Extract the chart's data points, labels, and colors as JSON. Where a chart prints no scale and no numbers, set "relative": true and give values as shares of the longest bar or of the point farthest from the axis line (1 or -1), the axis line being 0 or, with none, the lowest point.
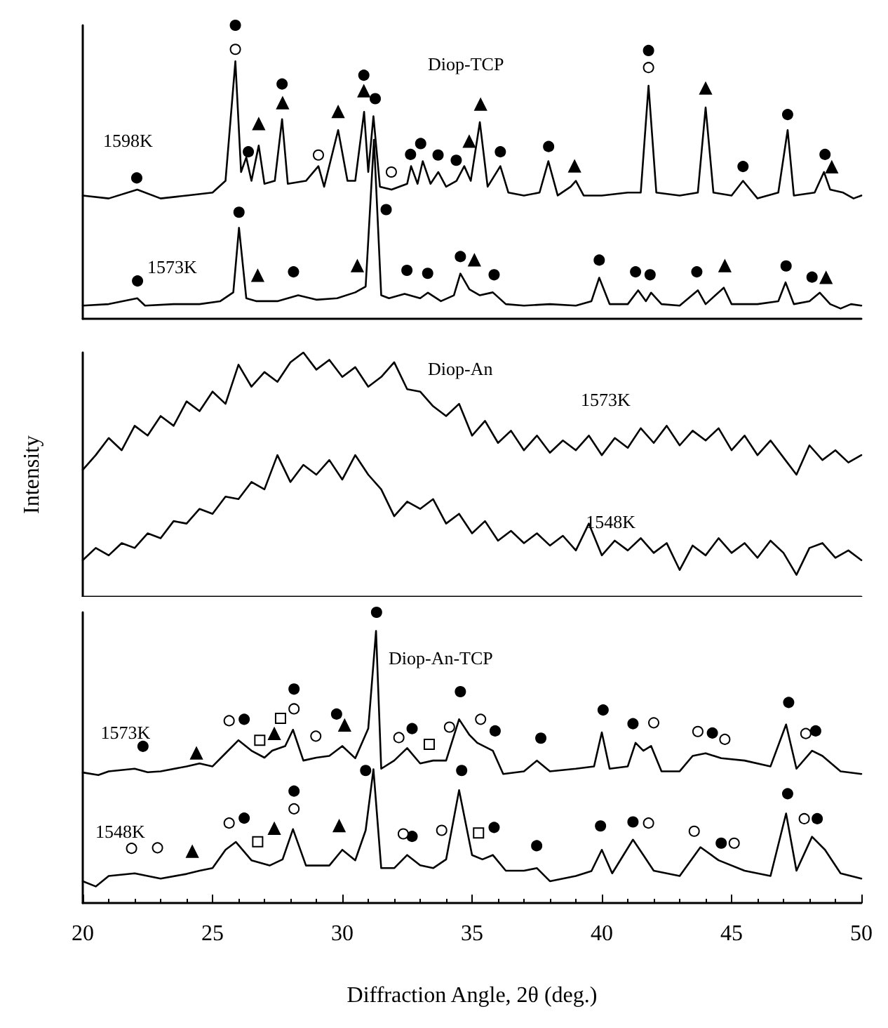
{
  "chart_data": [
    {
      "type": "line",
      "title": "Diop-TCP",
      "relative": true,
      "legend": false,
      "grid": false,
      "tick_labels": false,
      "marker": "none",
      "xlim": [
        20,
        50
      ],
      "xticks": [
        20,
        25,
        30,
        35,
        40,
        45,
        50
      ],
      "series": [
        {
          "name": "1598K",
          "color": "#000000",
          "x": [
            20,
            21,
            22.1,
            23,
            24,
            25,
            25.5,
            25.88,
            26.1,
            26.3,
            26.5,
            26.78,
            27.0,
            27.4,
            27.68,
            27.9,
            28.6,
            29.08,
            29.3,
            29.84,
            30.2,
            30.5,
            30.84,
            31.0,
            31.2,
            31.45,
            31.9,
            32.5,
            32.65,
            32.9,
            33.1,
            33.4,
            33.7,
            34.0,
            34.4,
            34.7,
            34.95,
            35.3,
            35.6,
            36.09,
            36.4,
            37.0,
            37.6,
            37.94,
            38.3,
            38.8,
            39.0,
            39.3,
            40,
            41,
            41.5,
            41.8,
            42.1,
            43,
            43.7,
            44.0,
            44.3,
            45.0,
            45.44,
            46.0,
            46.8,
            47.16,
            47.4,
            48.2,
            48.56,
            48.8,
            49.3,
            49.7,
            50
          ],
          "values": [
            0.42,
            0.41,
            0.44,
            0.41,
            0.42,
            0.43,
            0.47,
            0.877,
            0.5,
            0.55,
            0.47,
            0.59,
            0.46,
            0.47,
            0.68,
            0.46,
            0.47,
            0.52,
            0.45,
            0.643,
            0.47,
            0.47,
            0.705,
            0.5,
            0.69,
            0.45,
            0.44,
            0.46,
            0.52,
            0.46,
            0.537,
            0.46,
            0.5,
            0.45,
            0.47,
            0.52,
            0.47,
            0.67,
            0.45,
            0.52,
            0.43,
            0.42,
            0.43,
            0.537,
            0.42,
            0.45,
            0.47,
            0.42,
            0.42,
            0.43,
            0.43,
            0.794,
            0.43,
            0.42,
            0.43,
            0.72,
            0.43,
            0.42,
            0.47,
            0.41,
            0.43,
            0.643,
            0.42,
            0.43,
            0.5,
            0.44,
            0.43,
            0.41,
            0.42
          ]
        },
        {
          "name": "1573K",
          "color": "#000000",
          "x": [
            20,
            21,
            22.1,
            22.4,
            23.5,
            24.5,
            25.3,
            25.8,
            26.02,
            26.3,
            26.7,
            27.5,
            28.3,
            29,
            29.8,
            30.5,
            30.9,
            31.22,
            31.5,
            31.8,
            32.4,
            33.0,
            33.3,
            33.8,
            34.3,
            34.55,
            34.9,
            35.3,
            35.8,
            36.3,
            37,
            38,
            39,
            39.6,
            39.9,
            40.3,
            41,
            41.4,
            41.7,
            41.9,
            42.3,
            43,
            43.7,
            44,
            44.7,
            45,
            46,
            46.8,
            47.08,
            47.4,
            48,
            48.4,
            48.8,
            49.2,
            49.6,
            50
          ],
          "values": [
            0.045,
            0.05,
            0.07,
            0.045,
            0.05,
            0.05,
            0.06,
            0.09,
            0.31,
            0.07,
            0.06,
            0.06,
            0.08,
            0.065,
            0.07,
            0.09,
            0.11,
            0.61,
            0.08,
            0.07,
            0.085,
            0.07,
            0.089,
            0.06,
            0.08,
            0.154,
            0.1,
            0.08,
            0.09,
            0.05,
            0.045,
            0.05,
            0.045,
            0.06,
            0.14,
            0.05,
            0.05,
            0.097,
            0.06,
            0.089,
            0.05,
            0.045,
            0.097,
            0.05,
            0.106,
            0.05,
            0.05,
            0.06,
            0.124,
            0.05,
            0.06,
            0.089,
            0.05,
            0.035,
            0.05,
            0.045
          ]
        },
        {
          "type": "scatter",
          "marker": "circle",
          "color": "#000000",
          "x": [
            22.08,
            25.88,
            26.38,
            27.68,
            30.83,
            31.27,
            32.63,
            33.02,
            33.69,
            34.39,
            36.09,
            37.95,
            41.8,
            45.44,
            47.16,
            48.6,
            22.11,
            26.02,
            28.12,
            31.69,
            32.49,
            33.29,
            34.55,
            35.85,
            39.9,
            41.3,
            41.86,
            43.66,
            47.1,
            48.1
          ],
          "values": [
            0.48,
            1,
            0.569,
            0.8,
            0.83,
            0.75,
            0.56,
            0.597,
            0.558,
            0.54,
            0.569,
            0.587,
            0.914,
            0.519,
            0.696,
            0.56,
            0.129,
            0.363,
            0.16,
            0.372,
            0.165,
            0.155,
            0.212,
            0.15,
            0.2,
            0.16,
            0.15,
            0.16,
            0.18,
            0.142
          ]
        },
        {
          "type": "scatter",
          "marker": "circle",
          "color": "#ffffff",
          "x": [
            25.88,
            29.08,
            31.89,
            41.8
          ],
          "values": [
            0.918,
            0.558,
            0.5,
            0.856
          ]
        },
        {
          "type": "scatter",
          "marker": "triangle",
          "color": "#000000",
          "x": [
            26.78,
            27.7,
            29.84,
            30.83,
            34.89,
            35.33,
            38.95,
            44.0,
            48.86,
            26.74,
            30.58,
            35.09,
            44.74,
            48.64
          ],
          "values": [
            0.664,
            0.735,
            0.705,
            0.776,
            0.604,
            0.73,
            0.52,
            0.785,
            0.517,
            0.147,
            0.18,
            0.2,
            0.18,
            0.14
          ]
        }
      ]
    },
    {
      "type": "line",
      "title": "Diop-An",
      "ylabel": "Intensity",
      "relative": true,
      "legend": false,
      "grid": false,
      "tick_labels": false,
      "marker": "none",
      "xlim": [
        20,
        50
      ],
      "xticks": [
        20,
        25,
        30,
        35,
        40,
        45,
        50
      ],
      "x": [
        20,
        20.5,
        21,
        21.5,
        22,
        22.5,
        23,
        23.5,
        24,
        24.5,
        25,
        25.5,
        26,
        26.5,
        27,
        27.5,
        28,
        28.5,
        29,
        29.5,
        30,
        30.5,
        31,
        31.5,
        32,
        32.5,
        33,
        33.5,
        34,
        34.5,
        35,
        35.5,
        36,
        36.5,
        37,
        37.5,
        38,
        38.5,
        39,
        39.5,
        40,
        40.5,
        41,
        41.5,
        42,
        42.5,
        43,
        43.5,
        44,
        44.5,
        45,
        45.5,
        46,
        46.5,
        47,
        47.5,
        48,
        48.5,
        49,
        49.5,
        50
      ],
      "series": [
        {
          "name": "1573K",
          "color": "#000000",
          "values": [
            0.52,
            0.58,
            0.65,
            0.6,
            0.7,
            0.66,
            0.74,
            0.7,
            0.8,
            0.76,
            0.84,
            0.79,
            0.95,
            0.86,
            0.92,
            0.88,
            0.96,
            1.0,
            0.93,
            0.97,
            0.9,
            0.94,
            0.86,
            0.9,
            0.96,
            0.85,
            0.84,
            0.78,
            0.74,
            0.79,
            0.66,
            0.72,
            0.63,
            0.68,
            0.6,
            0.66,
            0.59,
            0.64,
            0.6,
            0.66,
            0.58,
            0.65,
            0.61,
            0.69,
            0.63,
            0.7,
            0.62,
            0.68,
            0.64,
            0.69,
            0.6,
            0.66,
            0.58,
            0.64,
            0.57,
            0.5,
            0.62,
            0.56,
            0.6,
            0.55,
            0.58
          ]
        },
        {
          "name": "1548K",
          "color": "#000000",
          "values": [
            0.15,
            0.2,
            0.17,
            0.22,
            0.2,
            0.26,
            0.24,
            0.31,
            0.3,
            0.36,
            0.34,
            0.41,
            0.4,
            0.47,
            0.44,
            0.58,
            0.47,
            0.54,
            0.5,
            0.56,
            0.48,
            0.58,
            0.5,
            0.44,
            0.33,
            0.39,
            0.36,
            0.4,
            0.3,
            0.34,
            0.26,
            0.31,
            0.23,
            0.27,
            0.22,
            0.26,
            0.21,
            0.25,
            0.19,
            0.3,
            0.17,
            0.23,
            0.19,
            0.24,
            0.18,
            0.22,
            0.11,
            0.21,
            0.17,
            0.24,
            0.18,
            0.22,
            0.16,
            0.23,
            0.18,
            0.09,
            0.2,
            0.22,
            0.16,
            0.19,
            0.15
          ]
        }
      ]
    },
    {
      "type": "line",
      "title": "Diop-An-TCP",
      "xlabel": "Diffraction Angle, 2θ (deg.)",
      "relative": true,
      "legend": false,
      "grid": false,
      "tick_labels": "x",
      "marker": "none",
      "xlim": [
        20,
        50
      ],
      "xticks": [
        20,
        25,
        30,
        35,
        40,
        45,
        50
      ],
      "series": [
        {
          "name": "1573K",
          "color": "#000000",
          "x": [
            20,
            20.6,
            21,
            22,
            22.5,
            23,
            24,
            24.5,
            25,
            25.5,
            26,
            26.5,
            27,
            27.3,
            27.8,
            28.1,
            28.5,
            29,
            29.5,
            30,
            30.5,
            31,
            31.3,
            31.5,
            32,
            32.5,
            33,
            33.5,
            34,
            34.5,
            34.9,
            35.2,
            35.8,
            36.2,
            37,
            37.5,
            38,
            39,
            39.7,
            40,
            40.3,
            41,
            41.3,
            41.6,
            41.9,
            42.3,
            43,
            43.5,
            44,
            44.6,
            45.5,
            46.5,
            47.1,
            47.5,
            48.1,
            48.5,
            49.2,
            50
          ],
          "values": [
            0.449,
            0.44,
            0.453,
            0.462,
            0.45,
            0.453,
            0.47,
            0.48,
            0.47,
            0.515,
            0.56,
            0.524,
            0.5,
            0.524,
            0.54,
            0.596,
            0.49,
            0.5,
            0.506,
            0.54,
            0.498,
            0.6,
            0.936,
            0.462,
            0.49,
            0.533,
            0.48,
            0.49,
            0.49,
            0.632,
            0.578,
            0.551,
            0.524,
            0.444,
            0.453,
            0.49,
            0.453,
            0.462,
            0.47,
            0.587,
            0.462,
            0.47,
            0.551,
            0.524,
            0.54,
            0.453,
            0.453,
            0.506,
            0.515,
            0.498,
            0.49,
            0.47,
            0.614,
            0.462,
            0.524,
            0.506,
            0.453,
            0.444
          ]
        },
        {
          "name": "1548K",
          "color": "#000000",
          "x": [
            20,
            20.5,
            21,
            22,
            23,
            24,
            24.5,
            25,
            25.5,
            25.9,
            26.5,
            27.2,
            27.7,
            28.1,
            28.6,
            29.5,
            30,
            30.5,
            30.9,
            31.2,
            31.5,
            32,
            32.5,
            33,
            33.5,
            34,
            34.5,
            35,
            35.4,
            35.8,
            36.3,
            37,
            37.5,
            38,
            39,
            39.6,
            40,
            40.4,
            41.2,
            41.6,
            42,
            43,
            43.8,
            44.5,
            45.5,
            46.5,
            47.1,
            47.5,
            48.1,
            48.6,
            49.2,
            50
          ],
          "values": [
            0.075,
            0.057,
            0.093,
            0.102,
            0.084,
            0.1,
            0.111,
            0.12,
            0.183,
            0.21,
            0.147,
            0.129,
            0.15,
            0.254,
            0.129,
            0.129,
            0.183,
            0.147,
            0.25,
            0.46,
            0.12,
            0.12,
            0.165,
            0.13,
            0.12,
            0.15,
            0.388,
            0.165,
            0.15,
            0.165,
            0.111,
            0.111,
            0.12,
            0.075,
            0.093,
            0.11,
            0.183,
            0.102,
            0.218,
            0.165,
            0.111,
            0.093,
            0.192,
            0.147,
            0.111,
            0.093,
            0.308,
            0.111,
            0.228,
            0.183,
            0.102,
            0.084
          ]
        },
        {
          "type": "scatter",
          "marker": "circle",
          "color": "#000000",
          "x": [
            22.32,
            26.22,
            28.14,
            29.78,
            31.32,
            32.69,
            34.55,
            35.89,
            37.65,
            40.05,
            41.2,
            44.26,
            47.2,
            48.24,
            26.22,
            28.14,
            30.9,
            32.69,
            34.6,
            35.85,
            37.49,
            39.95,
            41.2,
            44.6,
            47.16,
            48.3
          ],
          "values": [
            0.539,
            0.632,
            0.736,
            0.65,
            1,
            0.6,
            0.727,
            0.592,
            0.567,
            0.664,
            0.617,
            0.585,
            0.69,
            0.592,
            0.292,
            0.385,
            0.456,
            0.229,
            0.456,
            0.26,
            0.197,
            0.265,
            0.279,
            0.206,
            0.376,
            0.29
          ]
        },
        {
          "type": "scatter",
          "marker": "circle",
          "color": "#ffffff",
          "x": [
            25.64,
            28.14,
            28.98,
            32.18,
            34.13,
            35.33,
            42.0,
            43.7,
            44.74,
            47.86,
            21.88,
            22.88,
            25.64,
            28.14,
            32.35,
            33.83,
            41.8,
            43.56,
            45.1,
            47.8
          ],
          "values": [
            0.627,
            0.668,
            0.574,
            0.569,
            0.605,
            0.632,
            0.62,
            0.59,
            0.563,
            0.583,
            0.188,
            0.19,
            0.275,
            0.324,
            0.238,
            0.25,
            0.275,
            0.247,
            0.206,
            0.29
          ]
        },
        {
          "type": "scatter",
          "marker": "triangle",
          "color": "#000000",
          "x": [
            24.38,
            27.38,
            30.09,
            24.22,
            27.38,
            29.88
          ],
          "values": [
            0.515,
            0.582,
            0.611,
            0.177,
            0.256,
            0.265
          ]
        },
        {
          "type": "scatter",
          "marker": "square",
          "color": "#ffffff",
          "x": [
            26.82,
            27.62,
            33.35,
            26.74,
            35.25
          ],
          "values": [
            0.56,
            0.635,
            0.546,
            0.211,
            0.241
          ]
        }
      ]
    }
  ]
}
